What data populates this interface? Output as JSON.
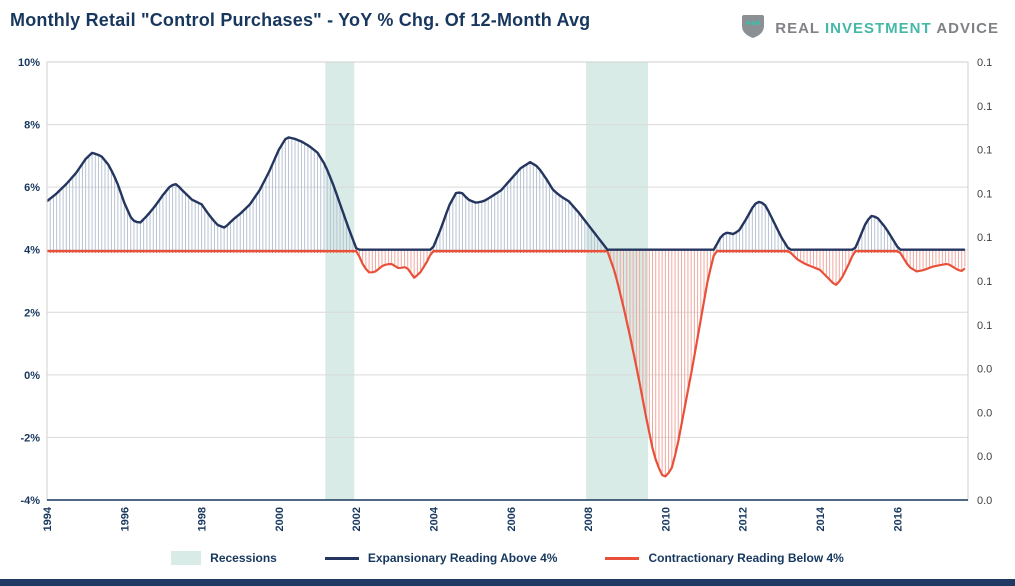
{
  "header": {
    "brand": {
      "icon": "shield-dots-icon",
      "parts": [
        "REAL",
        "INVESTMENT",
        "ADVICE"
      ],
      "colors": {
        "gray": "#808285",
        "teal": "#45b8a8"
      }
    }
  },
  "chart_data": {
    "type": "line",
    "title": "Monthly Retail \"Control Purchases\" - YoY % Chg. Of 12-Month Avg",
    "xlabel": "",
    "ylabel": "",
    "baseline": 4,
    "x_range": [
      1994,
      2017.83
    ],
    "y_range": [
      -4,
      10
    ],
    "grid": "horizontal",
    "legend_position": "bottom",
    "y_ticks_left": [
      "10%",
      "8%",
      "6%",
      "4%",
      "2%",
      "0%",
      "-2%",
      "-4%"
    ],
    "y_ticks_right": [
      "0.1",
      "0.1",
      "0.1",
      "0.1",
      "0.1",
      "0.1",
      "0.1",
      "0.0",
      "0.0",
      "0.0",
      "0.0"
    ],
    "x_ticks": [
      "1994",
      "1996",
      "1998",
      "2000",
      "2002",
      "2004",
      "2006",
      "2008",
      "2010",
      "2012",
      "2014",
      "2016"
    ],
    "x_tick_years": [
      1994,
      1996,
      1998,
      2000,
      2002,
      2004,
      2006,
      2008,
      2010,
      2012,
      2014,
      2016
    ],
    "recessions": [
      [
        2001.2,
        2001.95
      ],
      [
        2007.95,
        2009.55
      ]
    ],
    "legend": [
      "Recessions",
      "Expansionary Reading Above 4%",
      "Contractionary Reading Below 4%"
    ],
    "colors": {
      "expansion": "#24365f",
      "contraction": "#e8503a",
      "recession": "#d8ebe7",
      "needle_above": "#b7c3d3",
      "needle_below": "#f0a89f",
      "grid": "#d9d9d9",
      "axis": "#17375e"
    },
    "series_points": [
      [
        1994.0,
        5.55
      ],
      [
        1994.25,
        5.8
      ],
      [
        1994.5,
        6.1
      ],
      [
        1994.75,
        6.45
      ],
      [
        1995.0,
        6.9
      ],
      [
        1995.17,
        7.1
      ],
      [
        1995.4,
        7.0
      ],
      [
        1995.6,
        6.7
      ],
      [
        1995.8,
        6.2
      ],
      [
        1996.0,
        5.5
      ],
      [
        1996.2,
        4.95
      ],
      [
        1996.4,
        4.85
      ],
      [
        1996.6,
        5.1
      ],
      [
        1996.8,
        5.4
      ],
      [
        1997.0,
        5.75
      ],
      [
        1997.2,
        6.05
      ],
      [
        1997.35,
        6.1
      ],
      [
        1997.5,
        5.9
      ],
      [
        1997.75,
        5.6
      ],
      [
        1998.0,
        5.45
      ],
      [
        1998.2,
        5.1
      ],
      [
        1998.4,
        4.8
      ],
      [
        1998.6,
        4.7
      ],
      [
        1998.8,
        4.95
      ],
      [
        1999.0,
        5.15
      ],
      [
        1999.25,
        5.45
      ],
      [
        1999.5,
        5.9
      ],
      [
        1999.75,
        6.5
      ],
      [
        2000.0,
        7.2
      ],
      [
        2000.2,
        7.6
      ],
      [
        2000.4,
        7.55
      ],
      [
        2000.6,
        7.45
      ],
      [
        2000.8,
        7.3
      ],
      [
        2001.0,
        7.1
      ],
      [
        2001.2,
        6.7
      ],
      [
        2001.4,
        6.1
      ],
      [
        2001.6,
        5.4
      ],
      [
        2001.8,
        4.7
      ],
      [
        2002.0,
        4.05
      ],
      [
        2002.2,
        3.5
      ],
      [
        2002.35,
        3.3
      ],
      [
        2002.5,
        3.35
      ],
      [
        2002.7,
        3.55
      ],
      [
        2002.9,
        3.6
      ],
      [
        2003.1,
        3.45
      ],
      [
        2003.3,
        3.5
      ],
      [
        2003.5,
        3.15
      ],
      [
        2003.65,
        3.3
      ],
      [
        2003.85,
        3.7
      ],
      [
        2004.0,
        4.1
      ],
      [
        2004.2,
        4.7
      ],
      [
        2004.4,
        5.4
      ],
      [
        2004.6,
        5.85
      ],
      [
        2004.75,
        5.8
      ],
      [
        2004.9,
        5.6
      ],
      [
        2005.1,
        5.5
      ],
      [
        2005.3,
        5.55
      ],
      [
        2005.5,
        5.7
      ],
      [
        2005.75,
        5.9
      ],
      [
        2006.0,
        6.25
      ],
      [
        2006.25,
        6.6
      ],
      [
        2006.5,
        6.8
      ],
      [
        2006.7,
        6.65
      ],
      [
        2006.9,
        6.3
      ],
      [
        2007.1,
        5.9
      ],
      [
        2007.3,
        5.7
      ],
      [
        2007.5,
        5.55
      ],
      [
        2007.75,
        5.2
      ],
      [
        2008.0,
        4.8
      ],
      [
        2008.25,
        4.4
      ],
      [
        2008.5,
        4.0
      ],
      [
        2008.7,
        3.3
      ],
      [
        2008.9,
        2.3
      ],
      [
        2009.1,
        1.2
      ],
      [
        2009.3,
        0.0
      ],
      [
        2009.5,
        -1.3
      ],
      [
        2009.7,
        -2.5
      ],
      [
        2009.9,
        -3.15
      ],
      [
        2010.0,
        -3.2
      ],
      [
        2010.15,
        -3.0
      ],
      [
        2010.3,
        -2.3
      ],
      [
        2010.5,
        -1.0
      ],
      [
        2010.7,
        0.3
      ],
      [
        2010.9,
        1.7
      ],
      [
        2011.1,
        3.1
      ],
      [
        2011.3,
        4.1
      ],
      [
        2011.45,
        4.45
      ],
      [
        2011.6,
        4.55
      ],
      [
        2011.75,
        4.5
      ],
      [
        2011.9,
        4.6
      ],
      [
        2012.1,
        5.0
      ],
      [
        2012.3,
        5.45
      ],
      [
        2012.45,
        5.55
      ],
      [
        2012.6,
        5.4
      ],
      [
        2012.8,
        4.9
      ],
      [
        2013.0,
        4.4
      ],
      [
        2013.2,
        4.0
      ],
      [
        2013.4,
        3.75
      ],
      [
        2013.6,
        3.6
      ],
      [
        2013.8,
        3.5
      ],
      [
        2014.0,
        3.4
      ],
      [
        2014.2,
        3.15
      ],
      [
        2014.4,
        2.9
      ],
      [
        2014.55,
        3.1
      ],
      [
        2014.75,
        3.6
      ],
      [
        2015.0,
        4.3
      ],
      [
        2015.2,
        4.9
      ],
      [
        2015.35,
        5.1
      ],
      [
        2015.5,
        5.0
      ],
      [
        2015.7,
        4.7
      ],
      [
        2015.9,
        4.3
      ],
      [
        2016.1,
        3.9
      ],
      [
        2016.3,
        3.5
      ],
      [
        2016.5,
        3.35
      ],
      [
        2016.7,
        3.4
      ],
      [
        2016.9,
        3.5
      ],
      [
        2017.1,
        3.55
      ],
      [
        2017.3,
        3.6
      ],
      [
        2017.5,
        3.45
      ],
      [
        2017.65,
        3.35
      ],
      [
        2017.8,
        3.5
      ]
    ]
  }
}
